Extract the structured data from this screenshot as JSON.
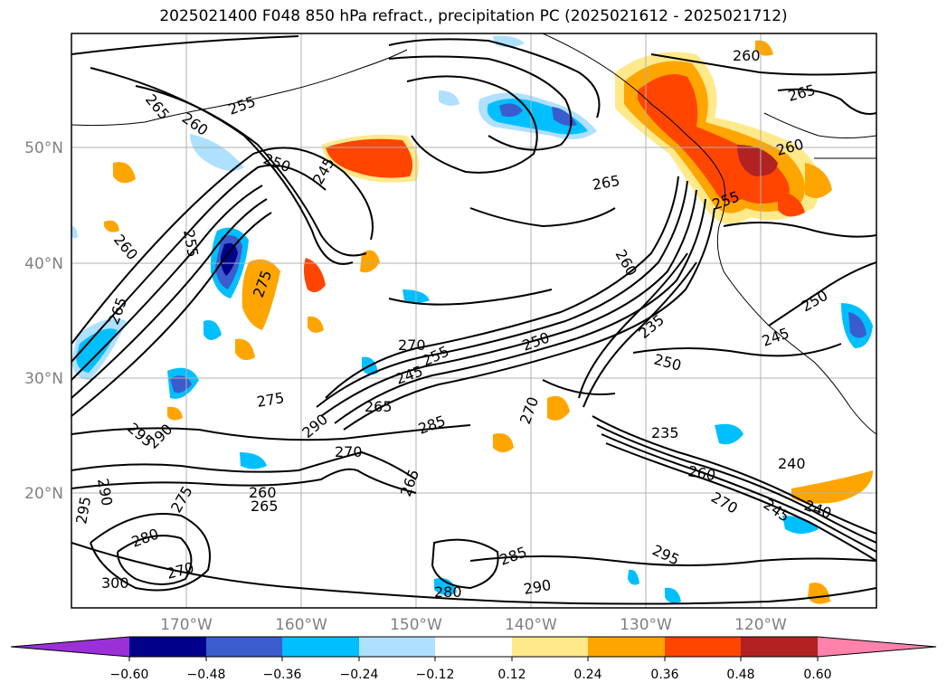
{
  "title": "2025021400 F048 850 hPa refract., precipitation PC (2025021612 - 2025021712)",
  "map": {
    "lat_labels": [
      "50°N",
      "40°N",
      "30°N",
      "20°N"
    ],
    "lon_labels": [
      "170°W",
      "160°W",
      "150°W",
      "140°W",
      "130°W",
      "120°W"
    ],
    "contour_labels": [
      "265",
      "260",
      "255",
      "250",
      "245",
      "240",
      "235",
      "270",
      "275",
      "280",
      "285",
      "290",
      "295",
      "300"
    ]
  },
  "colorbar": {
    "ticks": [
      "−0.60",
      "−0.48",
      "−0.36",
      "−0.24",
      "−0.12",
      "0.12",
      "0.24",
      "0.36",
      "0.48",
      "0.60"
    ],
    "colors": [
      "#9b30d9",
      "#00008b",
      "#3a5ccc",
      "#00bfff",
      "#aee0ff",
      "#ffffff",
      "#ffe98a",
      "#ffa500",
      "#ff4500",
      "#b22222",
      "#ff82ab"
    ]
  }
}
